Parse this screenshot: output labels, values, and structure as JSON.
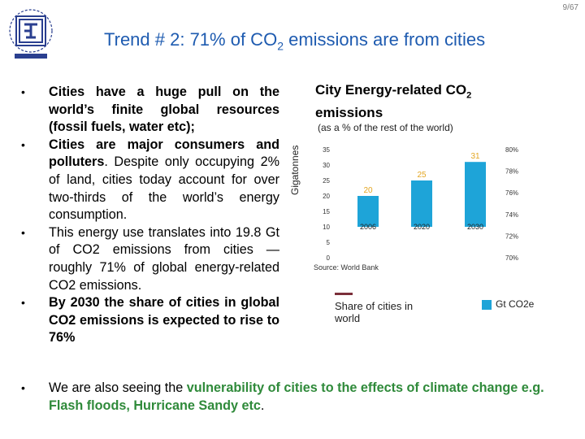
{
  "page_number": "9/67",
  "title": {
    "pre": "Trend # 2: 71% of CO",
    "sub": "2",
    "post": " emissions are from cities"
  },
  "bullets": [
    {
      "text": "Cities have a huge pull on the world’s finite global resources (fossil fuels, water etc);"
    },
    {
      "bold": "Cities are major consumers and polluters",
      "rest": ". Despite only occupying 2% of land, cities today account for over two-thirds of the world’s energy consumption."
    },
    {
      "text": "This energy use translates into 19.8 Gt of CO2 emissions from cities — roughly 71% of global energy-related CO2 emissions."
    },
    {
      "text": "By 2030 the share of cities in global CO2 emissions is expected to rise to 76%"
    }
  ],
  "last_bullet": {
    "pre": "We are also seeing the ",
    "green": "vulnerability of cities to the effects of climate change e.g. Flash floods, Hurricane Sandy etc",
    "post": "."
  },
  "chart_title_pre": "City Energy-related CO",
  "chart_title_sub": "2",
  "chart_title_post": "emissions",
  "chart_subtitle": "(as a % of the rest of the world)",
  "y_axis_label": "Gigatonnes",
  "source": "Source: World Bank",
  "legend": {
    "share": "Share of cities in world",
    "gt": "Gt CO2e"
  },
  "colors": {
    "title": "#1e5bb0",
    "bar": "#1ea4d8",
    "bar_label": "#e3a622",
    "highlight": "#2f8a3a",
    "share_line": "#7b2f3a"
  },
  "chart_data": {
    "type": "bar",
    "categories": [
      "2006",
      "2020",
      "2030"
    ],
    "values": [
      20,
      25,
      31
    ],
    "ylim": [
      0,
      35
    ],
    "yticks": [
      0,
      5,
      10,
      15,
      20,
      25,
      30,
      35
    ],
    "ylabel": "Gigatonnes",
    "y2ticks": [
      "70%",
      "72%",
      "74%",
      "76%",
      "78%",
      "80%"
    ],
    "series": [
      {
        "name": "Gt CO2e",
        "values": [
          20,
          25,
          31
        ]
      }
    ]
  }
}
